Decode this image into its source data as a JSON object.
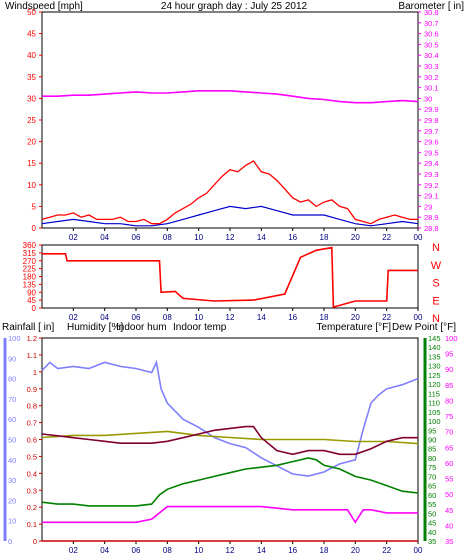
{
  "colors": {
    "windspeed": "#ff0000",
    "gust": "#ff0000",
    "average_wind": "#0000cc",
    "barometer": "#ff00ff",
    "direction": "#ff0000",
    "rainfall": "#cc0000",
    "humidity": "#8080ff",
    "indoor_humidity": "#999900",
    "indoor_temp": "#800030",
    "temperature": "#008000",
    "dew_point": "#ff00ff",
    "rain_line": "#ffff66",
    "title": "#000080",
    "grid": "#000000"
  },
  "chart_data": [
    {
      "type": "line",
      "title": "24 hour graph day : July 25 2012",
      "ylabel_left": "Windspeed [mph]",
      "ylabel_right": "Barometer [ in]",
      "x_ticks": [
        "02",
        "04",
        "06",
        "08",
        "10",
        "12",
        "14",
        "16",
        "18",
        "20",
        "22",
        "00"
      ],
      "xlim": [
        0,
        24
      ],
      "ylim_left": [
        0,
        50
      ],
      "yticks_left": [
        "0",
        "5",
        "10",
        "15",
        "20",
        "25",
        "30",
        "35",
        "40",
        "45",
        "50"
      ],
      "ylim_right": [
        28.8,
        30.8
      ],
      "yticks_right": [
        "28.8",
        "28.9",
        "29",
        "29.1",
        "29.2",
        "29.3",
        "29.4",
        "29.5",
        "29.6",
        "29.7",
        "29.8",
        "29.9",
        "30",
        "30.1",
        "30.2",
        "30.3",
        "30.4",
        "30.5",
        "30.6",
        "30.7",
        "30.8"
      ],
      "series": [
        {
          "name": "Windspeed [mph]",
          "axis": "left",
          "style": "gust",
          "x": [
            0,
            0.5,
            1,
            1.5,
            2,
            2.5,
            3,
            3.5,
            4,
            4.5,
            5,
            5.5,
            6,
            6.5,
            7,
            7.5,
            8,
            8.5,
            9,
            9.5,
            10,
            10.5,
            11,
            11.5,
            12,
            12.5,
            13,
            13.5,
            14,
            14.5,
            15,
            15.5,
            16,
            16.5,
            17,
            17.5,
            18,
            18.5,
            19,
            19.5,
            20,
            20.5,
            21,
            21.5,
            22,
            22.5,
            23,
            23.5,
            24
          ],
          "y": [
            2,
            2.5,
            3,
            3,
            3.5,
            2.5,
            3,
            2,
            2,
            2,
            2.5,
            1.5,
            1.5,
            2,
            1,
            1,
            2,
            3.5,
            4.5,
            5.5,
            7,
            8,
            10,
            12,
            13.5,
            13,
            14.5,
            15.5,
            13,
            12.5,
            11,
            9,
            7,
            6,
            6.5,
            5,
            6,
            6.5,
            5,
            4.5,
            2,
            1.5,
            1,
            2,
            2.5,
            3,
            2.5,
            2,
            2
          ]
        },
        {
          "name": "Average wind",
          "axis": "left",
          "style": "avg",
          "x": [
            0,
            1,
            2,
            3,
            4,
            5,
            6,
            7,
            8,
            9,
            10,
            11,
            12,
            13,
            14,
            15,
            16,
            17,
            18,
            19,
            20,
            21,
            22,
            23,
            24
          ],
          "y": [
            1,
            1.5,
            2,
            1.5,
            1,
            1,
            0.5,
            0.5,
            1,
            2,
            3,
            4,
            5,
            4.5,
            5,
            4,
            3,
            3,
            3,
            2,
            1,
            0.5,
            1,
            1.5,
            1
          ]
        },
        {
          "name": "Barometer [ in]",
          "axis": "right",
          "x": [
            0,
            1,
            2,
            3,
            4,
            5,
            6,
            7,
            8,
            9,
            10,
            11,
            12,
            13,
            14,
            15,
            16,
            17,
            18,
            19,
            20,
            21,
            22,
            23,
            24
          ],
          "y": [
            30.02,
            30.02,
            30.03,
            30.03,
            30.04,
            30.05,
            30.06,
            30.05,
            30.05,
            30.06,
            30.07,
            30.07,
            30.07,
            30.06,
            30.05,
            30.04,
            30.02,
            30.0,
            29.99,
            29.97,
            29.96,
            29.96,
            29.97,
            29.98,
            29.97
          ]
        }
      ]
    },
    {
      "type": "line",
      "title": "",
      "ylabel_right": "",
      "x_ticks": [
        "02",
        "04",
        "06",
        "08",
        "10",
        "12",
        "14",
        "16",
        "18",
        "20",
        "22",
        "00"
      ],
      "xlim": [
        0,
        24
      ],
      "ylim": [
        0,
        360
      ],
      "yticks_left": [
        "0",
        "45",
        "90",
        "135",
        "180",
        "225",
        "270",
        "315",
        "360"
      ],
      "compass_labels": [
        "N",
        "W",
        "S",
        "E",
        "N"
      ],
      "series": [
        {
          "name": "Wind direction",
          "x": [
            0,
            1.5,
            1.6,
            7.5,
            7.6,
            8.5,
            9,
            11,
            13.5,
            15.5,
            16.5,
            17.5,
            18.5,
            18.6,
            20,
            21,
            22,
            22.1,
            24
          ],
          "y": [
            310,
            310,
            270,
            270,
            90,
            95,
            55,
            40,
            45,
            80,
            290,
            330,
            345,
            5,
            40,
            40,
            40,
            215,
            215
          ]
        }
      ]
    },
    {
      "type": "line",
      "title": "",
      "ylabel_rainfall": "Rainfall [ in]",
      "ylabel_humidity": "Humidity [%]",
      "ylabel_indoor_hum": "Indoor hum",
      "ylabel_indoor_temp": "Indoor temp",
      "ylabel_temperature": "Temperature [°F]",
      "ylabel_dewpoint": "Dew Point [°F]",
      "x_ticks": [
        "02",
        "04",
        "06",
        "08",
        "10",
        "12",
        "14",
        "16",
        "18",
        "20",
        "22",
        "00"
      ],
      "xlim": [
        0,
        24
      ],
      "rain_ticks": [
        "0",
        "0.1",
        "0.2",
        "0.3",
        "0.4",
        "0.5",
        "0.6",
        "0.7",
        "0.8",
        "0.9",
        "1",
        "1.1",
        "1.2"
      ],
      "ylim_rain": [
        0,
        1.2
      ],
      "humidity_ticks": [
        "0",
        "10",
        "20",
        "30",
        "40",
        "50",
        "60",
        "70",
        "80",
        "90",
        "100"
      ],
      "ylim_humidity": [
        0,
        100
      ],
      "temperature_ticks": [
        "35",
        "40",
        "45",
        "50",
        "55",
        "60",
        "65",
        "70",
        "75",
        "80",
        "85",
        "90",
        "95",
        "100",
        "105",
        "110",
        "115",
        "120",
        "125",
        "130",
        "135",
        "140",
        "145"
      ],
      "ylim_temperature": [
        35,
        145
      ],
      "dewpoint_ticks": [
        "35",
        "40",
        "45",
        "50",
        "55",
        "60",
        "65",
        "70",
        "75",
        "80",
        "85",
        "90",
        "95",
        "100"
      ],
      "ylim_dewpoint": [
        35,
        100
      ],
      "series": [
        {
          "name": "Humidity [%]",
          "axis": "humidity",
          "x": [
            0,
            0.5,
            1,
            2,
            3,
            4,
            5,
            6,
            7,
            7.3,
            7.6,
            8,
            9,
            10,
            11,
            12,
            13,
            14,
            15,
            16,
            17,
            18,
            19,
            20,
            20.5,
            21,
            21.5,
            22,
            23,
            24
          ],
          "y": [
            84,
            88,
            85,
            86,
            85,
            88,
            86,
            85,
            83,
            88,
            75,
            68,
            60,
            56,
            51,
            48,
            46,
            41,
            37,
            33,
            32,
            34,
            38,
            40,
            55,
            68,
            72,
            75,
            77,
            80
          ]
        },
        {
          "name": "Indoor hum",
          "axis": "humidity",
          "x": [
            0,
            2,
            4,
            6,
            8,
            10,
            12,
            14,
            16,
            18,
            20,
            22,
            24
          ],
          "y": [
            51,
            52,
            52,
            53,
            54,
            52,
            51,
            50,
            50,
            50,
            49,
            49,
            48
          ]
        },
        {
          "name": "Indoor temp",
          "axis": "temperature",
          "x": [
            0,
            1,
            2,
            3,
            4,
            5,
            6,
            7,
            8,
            9,
            10,
            11,
            12,
            13,
            13.5,
            14,
            15,
            16,
            17,
            18,
            19,
            20,
            21,
            22,
            23,
            24
          ],
          "y": [
            93,
            92,
            91,
            90,
            89,
            88,
            88,
            88,
            89,
            91,
            93,
            95,
            96,
            97,
            97,
            91,
            84,
            82,
            84,
            84,
            82,
            82,
            85,
            89,
            91,
            91
          ]
        },
        {
          "name": "Temperature [°F]",
          "axis": "temperature",
          "x": [
            0,
            1,
            2,
            3,
            4,
            5,
            6,
            7,
            7.5,
            8,
            9,
            10,
            11,
            12,
            13,
            14,
            15,
            16,
            17,
            17.5,
            18,
            19,
            20,
            21,
            22,
            23,
            24
          ],
          "y": [
            56,
            55,
            55,
            54,
            54,
            54,
            54,
            55,
            60,
            63,
            66,
            68,
            70,
            72,
            74,
            75,
            76,
            78,
            80,
            79,
            76,
            74,
            70,
            68,
            65,
            62,
            61
          ]
        },
        {
          "name": "Dew Point [°F]",
          "axis": "dewpoint",
          "x": [
            0,
            2,
            4,
            6,
            7,
            8,
            10,
            12,
            14,
            16,
            18,
            19.5,
            20,
            20.5,
            21,
            22,
            23,
            24
          ],
          "y": [
            41,
            41,
            41,
            41,
            42,
            46,
            46,
            46,
            46,
            45,
            45,
            45,
            41,
            45,
            45,
            44,
            44,
            44
          ]
        },
        {
          "name": "Rainfall [ in]",
          "axis": "rain",
          "x": [
            0,
            24
          ],
          "y": [
            0,
            0
          ]
        }
      ]
    }
  ]
}
